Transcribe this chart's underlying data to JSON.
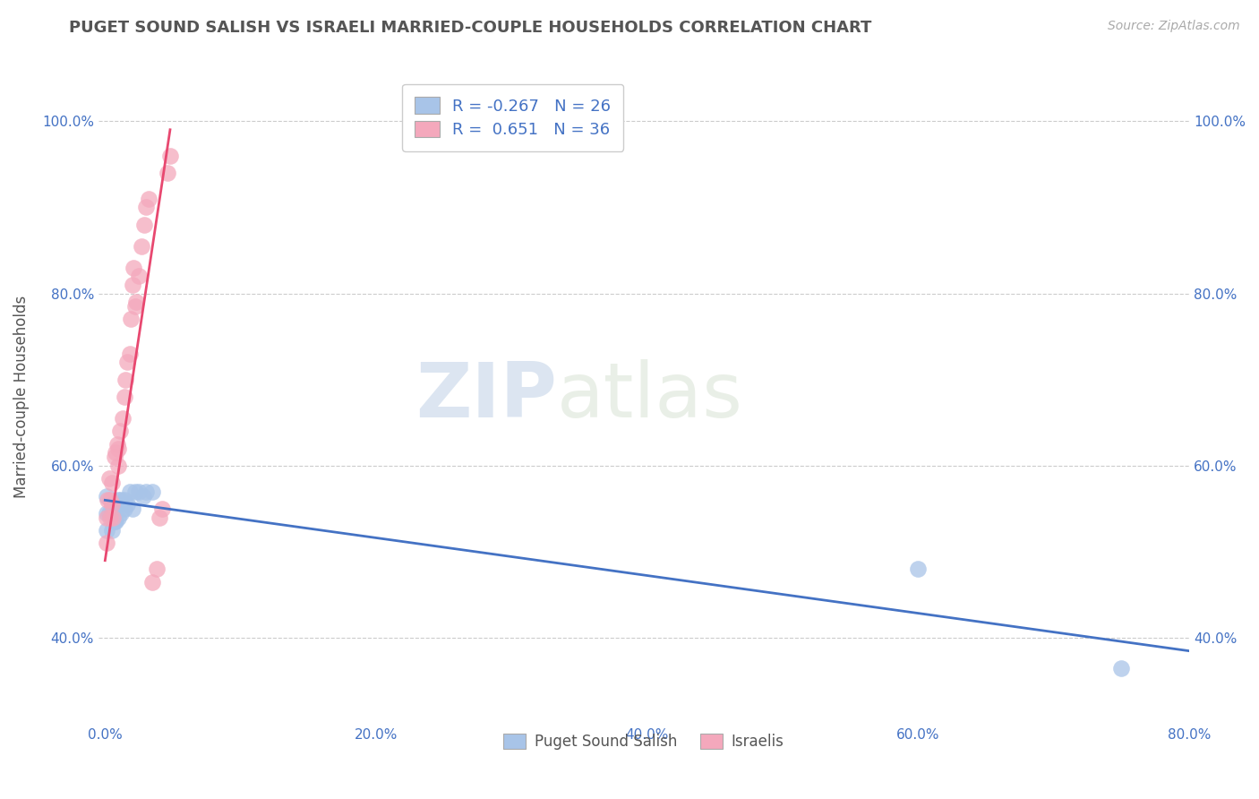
{
  "title": "PUGET SOUND SALISH VS ISRAELI MARRIED-COUPLE HOUSEHOLDS CORRELATION CHART",
  "source": "Source: ZipAtlas.com",
  "ylabel": "Married-couple Households",
  "xlim": [
    -0.005,
    0.8
  ],
  "ylim": [
    0.3,
    1.06
  ],
  "xticks": [
    0.0,
    0.2,
    0.4,
    0.6,
    0.8
  ],
  "xtick_labels": [
    "0.0%",
    "20.0%",
    "40.0%",
    "60.0%",
    "80.0%"
  ],
  "yticks": [
    0.4,
    0.6,
    0.8,
    1.0
  ],
  "ytick_labels": [
    "40.0%",
    "60.0%",
    "80.0%",
    "100.0%"
  ],
  "legend_labels": [
    "Puget Sound Salish",
    "Israelis"
  ],
  "legend_r": [
    -0.267,
    0.651
  ],
  "legend_n": [
    26,
    36
  ],
  "blue_color": "#A8C4E8",
  "pink_color": "#F4A8BC",
  "blue_line_color": "#4472C4",
  "pink_line_color": "#E84870",
  "watermark_zip": "ZIP",
  "watermark_atlas": "atlas",
  "background_color": "#FFFFFF",
  "blue_scatter_x": [
    0.001,
    0.001,
    0.001,
    0.003,
    0.005,
    0.005,
    0.007,
    0.007,
    0.008,
    0.009,
    0.01,
    0.01,
    0.012,
    0.012,
    0.014,
    0.014,
    0.016,
    0.018,
    0.02,
    0.022,
    0.025,
    0.028,
    0.03,
    0.035,
    0.6,
    0.75
  ],
  "blue_scatter_y": [
    0.525,
    0.545,
    0.565,
    0.545,
    0.525,
    0.545,
    0.535,
    0.555,
    0.535,
    0.555,
    0.54,
    0.56,
    0.545,
    0.56,
    0.55,
    0.56,
    0.555,
    0.57,
    0.55,
    0.57,
    0.57,
    0.565,
    0.57,
    0.57,
    0.48,
    0.365
  ],
  "pink_scatter_x": [
    0.001,
    0.001,
    0.002,
    0.003,
    0.004,
    0.004,
    0.005,
    0.005,
    0.006,
    0.007,
    0.008,
    0.009,
    0.01,
    0.01,
    0.011,
    0.013,
    0.014,
    0.015,
    0.016,
    0.018,
    0.019,
    0.02,
    0.021,
    0.022,
    0.023,
    0.025,
    0.027,
    0.029,
    0.03,
    0.032,
    0.035,
    0.038,
    0.04,
    0.042,
    0.046,
    0.048
  ],
  "pink_scatter_y": [
    0.51,
    0.54,
    0.56,
    0.585,
    0.54,
    0.56,
    0.555,
    0.58,
    0.54,
    0.61,
    0.615,
    0.625,
    0.6,
    0.62,
    0.64,
    0.655,
    0.68,
    0.7,
    0.72,
    0.73,
    0.77,
    0.81,
    0.83,
    0.785,
    0.79,
    0.82,
    0.855,
    0.88,
    0.9,
    0.91,
    0.465,
    0.48,
    0.54,
    0.55,
    0.94,
    0.96
  ],
  "blue_line_x": [
    0.0,
    0.8
  ],
  "blue_line_y": [
    0.56,
    0.385
  ],
  "pink_line_x": [
    0.0,
    0.048
  ],
  "pink_line_y": [
    0.49,
    0.99
  ]
}
